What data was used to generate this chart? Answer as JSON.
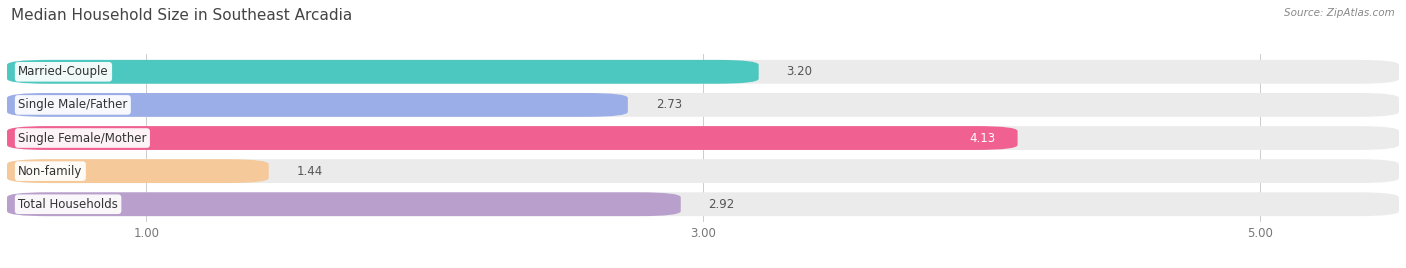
{
  "title": "Median Household Size in Southeast Arcadia",
  "source": "Source: ZipAtlas.com",
  "categories": [
    "Married-Couple",
    "Single Male/Father",
    "Single Female/Mother",
    "Non-family",
    "Total Households"
  ],
  "values": [
    3.2,
    2.73,
    4.13,
    1.44,
    2.92
  ],
  "bar_colors": [
    "#4DC8C0",
    "#9BAEE8",
    "#F06090",
    "#F5C999",
    "#B89FCC"
  ],
  "bg_bar_color": "#ebebeb",
  "background_color": "#ffffff",
  "xlim": [
    0.5,
    5.5
  ],
  "xticks": [
    1.0,
    3.0,
    5.0
  ],
  "title_fontsize": 11,
  "label_fontsize": 8.5,
  "value_fontsize": 8.5,
  "source_fontsize": 7.5,
  "value_inside_threshold": 3.8
}
